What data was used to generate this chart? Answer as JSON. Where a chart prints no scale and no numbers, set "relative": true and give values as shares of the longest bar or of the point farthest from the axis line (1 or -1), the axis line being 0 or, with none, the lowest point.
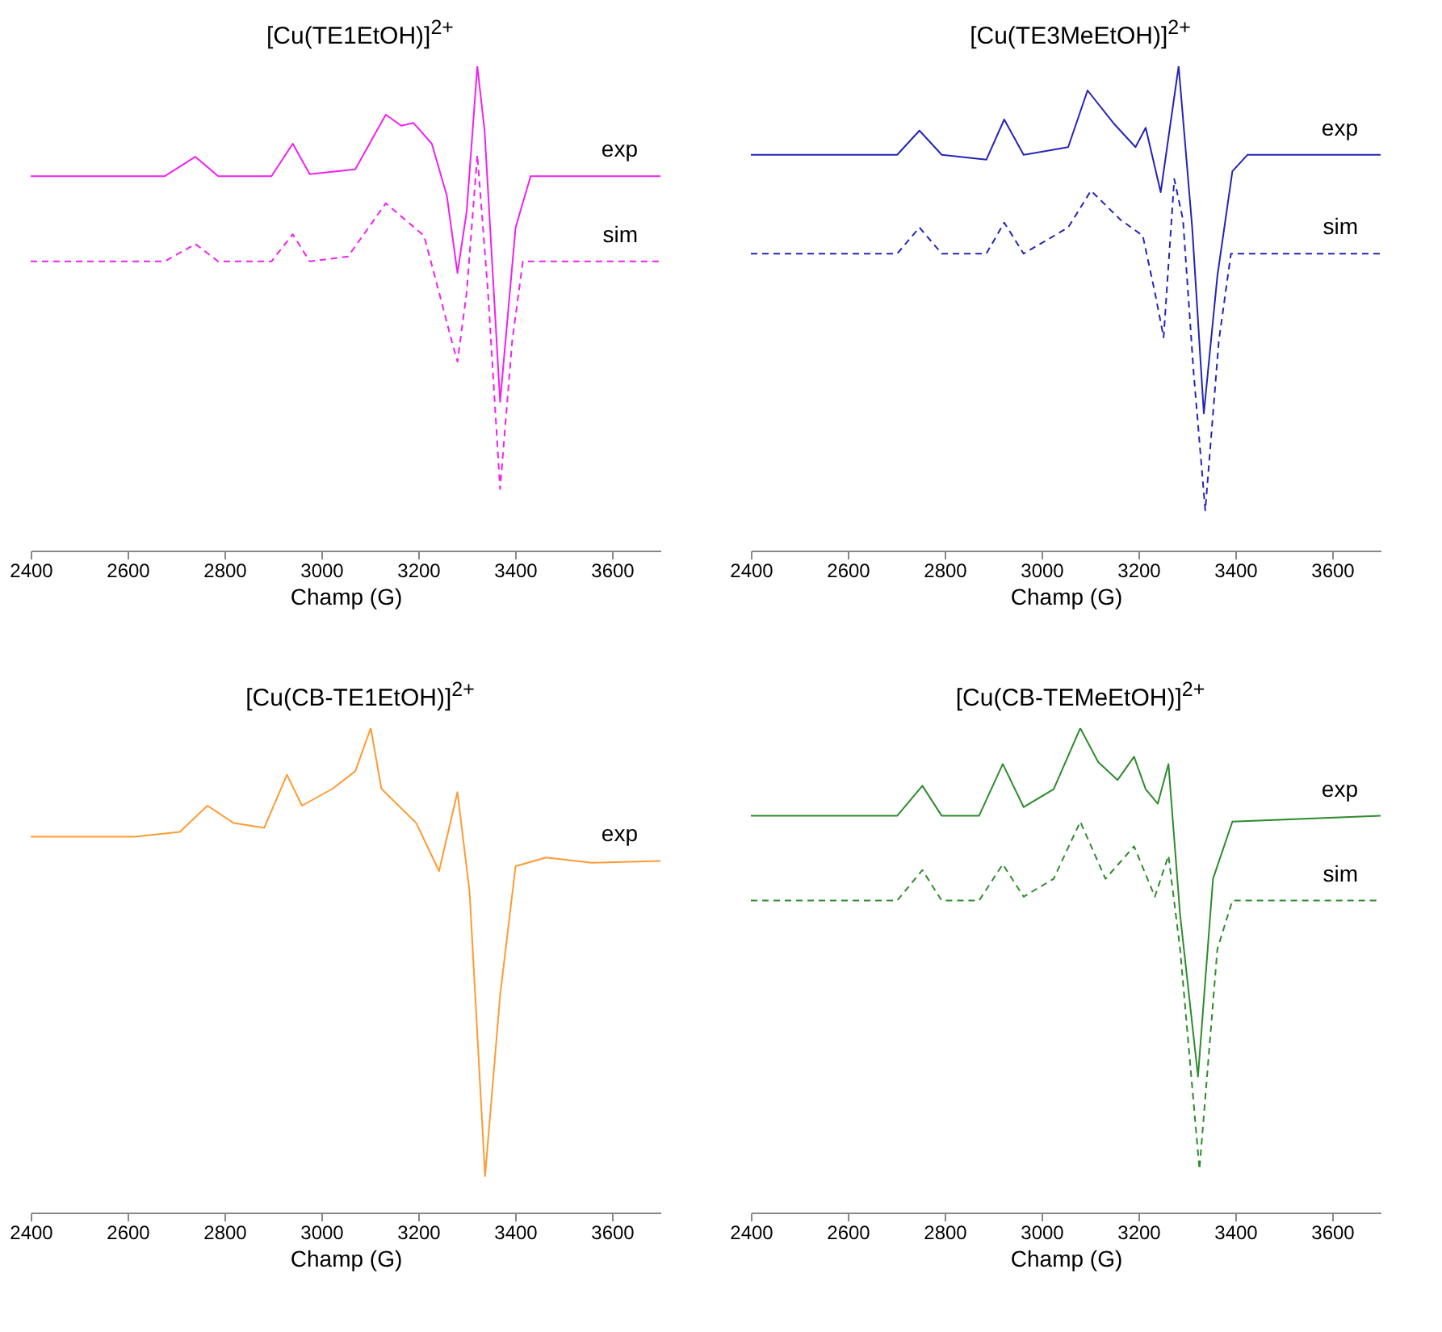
{
  "chart_data": [
    {
      "type": "line",
      "title": "[Cu(TE1EtOH)]$^{2+}$",
      "xlabel": "Champ (G)",
      "relative": true,
      "xlim": [
        2400,
        3700
      ],
      "xticks": [
        2400,
        2600,
        2800,
        3000,
        3200,
        3400,
        3600
      ],
      "grid": false,
      "legend": false,
      "series": [
        {
          "name": "exp",
          "color": "#f020f0",
          "line_style": "solid",
          "x": [
            2400,
            2677,
            2740,
            2787,
            2897,
            2941,
            2976,
            3070,
            3133,
            3165,
            3190,
            3228,
            3259,
            3281,
            3300,
            3322,
            3337,
            3369,
            3401,
            3432,
            3700
          ],
          "values": [
            0.773,
            0.773,
            0.813,
            0.773,
            0.773,
            0.84,
            0.777,
            0.787,
            0.9,
            0.877,
            0.883,
            0.84,
            0.733,
            0.573,
            0.7,
            1.0,
            0.867,
            0.307,
            0.667,
            0.773,
            0.773
          ]
        },
        {
          "name": "sim",
          "color": "#f020f0",
          "line_style": "dashed",
          "x": [
            2400,
            2677,
            2740,
            2787,
            2897,
            2941,
            2976,
            3055,
            3133,
            3212,
            3243,
            3269,
            3281,
            3300,
            3322,
            3344,
            3369,
            3394,
            3416,
            3700
          ],
          "values": [
            0.597,
            0.597,
            0.633,
            0.597,
            0.597,
            0.653,
            0.597,
            0.607,
            0.717,
            0.65,
            0.533,
            0.433,
            0.39,
            0.533,
            0.817,
            0.533,
            0.127,
            0.433,
            0.597,
            0.597
          ]
        }
      ]
    },
    {
      "type": "line",
      "title": "[Cu(TE3MeEtOH)]$^{2+}$",
      "xlabel": "Champ (G)",
      "relative": true,
      "xlim": [
        2400,
        3700
      ],
      "xticks": [
        2400,
        2600,
        2800,
        3000,
        3200,
        3400,
        3600
      ],
      "grid": false,
      "legend": false,
      "series": [
        {
          "name": "exp",
          "color": "#2424b8",
          "line_style": "solid",
          "x": [
            2400,
            2702,
            2748,
            2794,
            2886,
            2923,
            2963,
            3055,
            3095,
            3148,
            3194,
            3215,
            3246,
            3283,
            3311,
            3335,
            3363,
            3394,
            3425,
            3700
          ],
          "values": [
            0.817,
            0.817,
            0.867,
            0.817,
            0.807,
            0.89,
            0.817,
            0.833,
            0.95,
            0.883,
            0.833,
            0.873,
            0.74,
            1.0,
            0.667,
            0.283,
            0.567,
            0.783,
            0.817,
            0.817
          ]
        },
        {
          "name": "sim",
          "color": "#2424b8",
          "line_style": "dashed",
          "x": [
            2400,
            2702,
            2748,
            2794,
            2886,
            2923,
            2963,
            3055,
            3102,
            3163,
            3209,
            3234,
            3252,
            3274,
            3292,
            3314,
            3338,
            3366,
            3391,
            3700
          ],
          "values": [
            0.613,
            0.613,
            0.667,
            0.613,
            0.613,
            0.677,
            0.613,
            0.667,
            0.743,
            0.683,
            0.65,
            0.533,
            0.44,
            0.767,
            0.683,
            0.367,
            0.083,
            0.433,
            0.613,
            0.613
          ]
        }
      ]
    },
    {
      "type": "line",
      "title": "[Cu(CB-TE1EtOH)]$^{2+}$",
      "xlabel": "Champ (G)",
      "relative": true,
      "xlim": [
        2400,
        3700
      ],
      "xticks": [
        2400,
        2600,
        2800,
        3000,
        3200,
        3400,
        3600
      ],
      "grid": false,
      "legend": false,
      "series": [
        {
          "name": "exp",
          "color": "#ff9a33",
          "line_style": "solid",
          "x": [
            2400,
            2488,
            2614,
            2708,
            2765,
            2819,
            2882,
            2929,
            2960,
            3023,
            3070,
            3102,
            3124,
            3196,
            3243,
            3281,
            3306,
            3338,
            3369,
            3401,
            3464,
            3558,
            3700
          ],
          "values": [
            0.776,
            0.776,
            0.776,
            0.786,
            0.84,
            0.804,
            0.794,
            0.904,
            0.84,
            0.875,
            0.911,
            1.0,
            0.875,
            0.804,
            0.705,
            0.868,
            0.662,
            0.075,
            0.448,
            0.715,
            0.733,
            0.722,
            0.726
          ]
        }
      ]
    },
    {
      "type": "line",
      "title": "[Cu(CB-TEMeEtOH)]$^{2+}$",
      "xlabel": "Champ (G)",
      "relative": true,
      "xlim": [
        2400,
        3700
      ],
      "xticks": [
        2400,
        2600,
        2800,
        3000,
        3200,
        3400,
        3600
      ],
      "grid": false,
      "legend": false,
      "series": [
        {
          "name": "exp",
          "color": "#2e8b2e",
          "line_style": "solid",
          "x": [
            2400,
            2702,
            2754,
            2794,
            2871,
            2920,
            2963,
            3025,
            3080,
            3117,
            3157,
            3191,
            3215,
            3240,
            3262,
            3286,
            3323,
            3354,
            3394,
            3700
          ],
          "values": [
            0.819,
            0.819,
            0.881,
            0.819,
            0.819,
            0.926,
            0.837,
            0.874,
            1.0,
            0.93,
            0.893,
            0.941,
            0.874,
            0.844,
            0.926,
            0.615,
            0.281,
            0.689,
            0.807,
            0.819
          ]
        },
        {
          "name": "sim",
          "color": "#2e8b2e",
          "line_style": "dashed",
          "x": [
            2400,
            2702,
            2754,
            2794,
            2871,
            2920,
            2963,
            3025,
            3080,
            3132,
            3191,
            3234,
            3262,
            3286,
            3326,
            3363,
            3394,
            3700
          ],
          "values": [
            0.644,
            0.644,
            0.707,
            0.644,
            0.644,
            0.719,
            0.652,
            0.689,
            0.807,
            0.689,
            0.756,
            0.652,
            0.737,
            0.544,
            0.089,
            0.544,
            0.644,
            0.644
          ]
        }
      ]
    }
  ]
}
